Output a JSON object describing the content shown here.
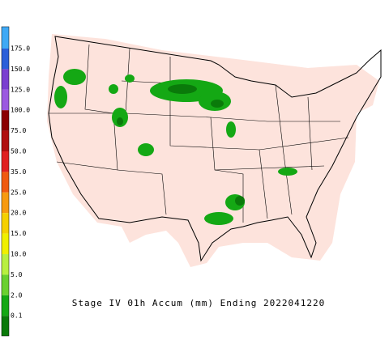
{
  "legend": {
    "colors": [
      "#3fa9f5",
      "#2b5fd9",
      "#7a3fd0",
      "#9b59e0",
      "#8b0000",
      "#b01010",
      "#e02020",
      "#f05a10",
      "#f79a10",
      "#f5d000",
      "#f0f000",
      "#b8f040",
      "#6ad030",
      "#14a814",
      "#0a7a0a",
      "#fde3dc"
    ],
    "labels": [
      "175.0",
      "150.0",
      "125.0",
      "100.0",
      "75.0",
      "50.0",
      "35.0",
      "25.0",
      "20.0",
      "15.0",
      "10.0",
      "5.0",
      "2.0",
      "0.1"
    ]
  },
  "caption": "Stage IV 01h Accum (mm) Ending 2022041220"
}
